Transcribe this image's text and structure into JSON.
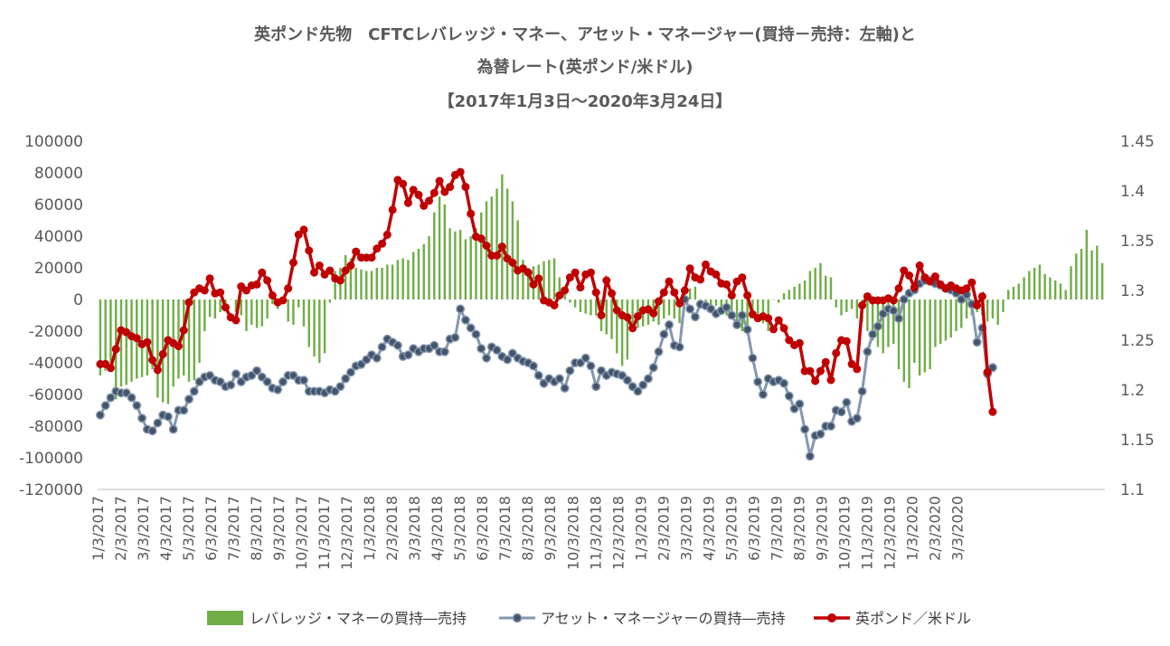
{
  "title_lines": [
    "英ポンド先物　CFTCレバレッジ・マネー、アセット・マネージャー(買持－売持：左軸)と",
    "為替レート(英ポンド/米ドル)",
    "【2017年1月3日～2020年3月24日】"
  ],
  "chart_data": {
    "type": "bar+line",
    "title": "英ポンド先物　CFTCレバレッジ・マネー、アセット・マネージャー(買持－売持：左軸)と 為替レート(英ポンド/米ドル) 【2017年1月3日～2020年3月24日】",
    "x_start": "1/3/2017",
    "x_end": "3/24/2020",
    "x_frequency": "weekly",
    "x_tick_labels": [
      "1/3/2017",
      "2/3/2017",
      "3/3/2017",
      "4/3/2017",
      "5/3/2017",
      "6/3/2017",
      "7/3/2017",
      "8/3/2017",
      "9/3/2017",
      "10/3/2017",
      "11/3/2017",
      "12/3/2017",
      "1/3/2018",
      "2/3/2018",
      "3/3/2018",
      "4/3/2018",
      "5/3/2018",
      "6/3/2018",
      "7/3/2018",
      "8/3/2018",
      "9/3/2018",
      "10/3/2018",
      "11/3/2018",
      "12/3/2018",
      "1/3/2019",
      "2/3/2019",
      "3/3/2019",
      "4/3/2019",
      "5/3/2019",
      "6/3/2019",
      "7/3/2019",
      "8/3/2019",
      "9/3/2019",
      "10/3/2019",
      "11/3/2019",
      "12/3/2019",
      "1/3/2020",
      "2/3/2020",
      "3/3/2020"
    ],
    "y_left_ticks": [
      "100000",
      "80000",
      "60000",
      "40000",
      "20000",
      "0",
      "-20000",
      "-40000",
      "-60000",
      "-80000",
      "-100000",
      "-120000"
    ],
    "y_left_range": [
      -120000,
      100000
    ],
    "y_right_ticks": [
      "1.45",
      "1.4",
      "1.35",
      "1.3",
      "1.25",
      "1.2",
      "1.15",
      "1.1"
    ],
    "y_right_range": [
      1.1,
      1.45
    ],
    "grid": false,
    "legend_position": "bottom",
    "colors": {
      "leveraged": "#70AD47",
      "asset": "#8497B0",
      "asset_marker": "#44546A",
      "gbp": "#C00000"
    },
    "series": [
      {
        "name": "レバレッジ・マネーの買持―売持",
        "type": "bar",
        "axis": "left",
        "values": [
          -48000,
          -45000,
          -40000,
          -63000,
          -55000,
          -54000,
          -52000,
          -50000,
          -49000,
          -48000,
          -44000,
          -62000,
          -65000,
          -66000,
          -55000,
          -50000,
          -48000,
          -52000,
          -51000,
          -40000,
          -20000,
          -11000,
          -12000,
          -8000,
          -6000,
          0,
          -8000,
          -10000,
          -20000,
          -16000,
          -18000,
          -17000,
          -12000,
          -3000,
          -6000,
          -2000,
          -14000,
          -16000,
          -5000,
          -17000,
          -30000,
          -36000,
          -40000,
          -34000,
          -2000,
          18000,
          20000,
          28000,
          26000,
          20000,
          19000,
          18000,
          18000,
          20000,
          20000,
          22000,
          22000,
          25000,
          26000,
          25000,
          30000,
          32000,
          35000,
          40000,
          55000,
          65000,
          60000,
          45000,
          43000,
          44000,
          38000,
          40000,
          45000,
          55000,
          62000,
          65000,
          70000,
          79000,
          70000,
          62000,
          50000,
          25000,
          20000,
          21000,
          22000,
          24000,
          25000,
          26000,
          14000,
          7000,
          -2000,
          -5000,
          -8000,
          -9000,
          -10000,
          -10000,
          -20000,
          -22000,
          -25000,
          -34000,
          -42000,
          -38000,
          -20000,
          -18000,
          -17000,
          -16000,
          -14000,
          -16000,
          -12000,
          -10000,
          -12000,
          -15000,
          4000,
          7000,
          8000,
          -2000,
          -4000,
          -5000,
          -4000,
          -6000,
          -10000,
          -12000,
          -15000,
          -20000,
          -18000,
          -10000,
          -12000,
          -15000,
          -20000,
          0,
          -2000,
          4000,
          6000,
          8000,
          10000,
          12000,
          18000,
          20000,
          23000,
          15000,
          14000,
          -5000,
          -10000,
          -8000,
          -6000,
          -12000,
          -14000,
          -20000,
          -26000,
          -30000,
          -34000,
          -30000,
          -28000,
          -44000,
          -52000,
          -56000,
          -40000,
          -48000,
          -46000,
          -44000,
          -30000,
          -28000,
          -26000,
          -24000,
          -20000,
          -18000,
          -12000,
          -10000,
          -8000,
          -10000,
          -14000,
          -12000,
          -16000,
          -8000,
          6000,
          8000,
          10000,
          14000,
          18000,
          20000,
          22000,
          16000,
          14000,
          12000,
          10000,
          6000,
          21000,
          29000,
          32000,
          44000,
          31000,
          34000,
          23000
        ]
      },
      {
        "name": "アセット・マネージャーの買持―売持",
        "type": "line",
        "axis": "left",
        "values": [
          -73000,
          -67000,
          -62000,
          -58000,
          -59000,
          -59000,
          -62000,
          -67000,
          -75000,
          -82000,
          -83000,
          -78000,
          -73000,
          -74000,
          -82000,
          -70000,
          -70000,
          -63000,
          -58000,
          -52000,
          -49000,
          -48000,
          -51000,
          -52000,
          -55000,
          -54000,
          -47000,
          -52000,
          -49000,
          -48000,
          -45000,
          -49000,
          -52000,
          -56000,
          -57000,
          -52000,
          -48000,
          -48000,
          -51000,
          -51000,
          -58000,
          -58000,
          -58000,
          -59000,
          -57000,
          -58000,
          -55000,
          -50000,
          -46000,
          -42000,
          -41000,
          -38000,
          -35000,
          -37000,
          -30000,
          -25000,
          -27000,
          -29000,
          -36000,
          -35000,
          -31000,
          -33000,
          -31000,
          -31000,
          -29000,
          -33000,
          -33000,
          -25000,
          -24000,
          -6000,
          -13000,
          -18000,
          -22000,
          -31000,
          -37000,
          -30000,
          -32000,
          -36000,
          -38000,
          -34000,
          -37000,
          -39000,
          -40000,
          -42000,
          -48000,
          -53000,
          -50000,
          -52000,
          -50000,
          -56000,
          -45000,
          -40000,
          -40000,
          -37000,
          -42000,
          -55000,
          -45000,
          -48000,
          -46000,
          -47000,
          -48000,
          -51000,
          -55000,
          -58000,
          -54000,
          -50000,
          -43000,
          -33000,
          -22000,
          -16000,
          -29000,
          -30000,
          0,
          -6000,
          -11000,
          -3000,
          -4000,
          -6000,
          -9000,
          -7000,
          -5000,
          -10000,
          -16000,
          -10000,
          -19000,
          -37000,
          -52000,
          -60000,
          -50000,
          -52000,
          -51000,
          -53000,
          -61000,
          -69000,
          -66000,
          -82000,
          -99000,
          -86000,
          -85000,
          -80000,
          -80000,
          -70000,
          -71000,
          -65000,
          -77000,
          -75000,
          -58000,
          -33000,
          -22000,
          -17000,
          -9000,
          -6000,
          -7000,
          -12000,
          0,
          4000,
          6000,
          10000,
          12000,
          12000,
          10000,
          9000,
          7000,
          6000,
          4000,
          0,
          3000,
          -3000,
          -27000,
          -18000,
          -47000,
          -43000
        ]
      },
      {
        "name": "英ポンド／米ドル",
        "type": "line",
        "axis": "right",
        "values": [
          1.226,
          1.226,
          1.222,
          1.241,
          1.26,
          1.258,
          1.254,
          1.252,
          1.246,
          1.248,
          1.23,
          1.22,
          1.236,
          1.25,
          1.247,
          1.244,
          1.26,
          1.288,
          1.298,
          1.302,
          1.3,
          1.312,
          1.297,
          1.298,
          1.283,
          1.273,
          1.27,
          1.304,
          1.3,
          1.305,
          1.306,
          1.318,
          1.31,
          1.295,
          1.288,
          1.29,
          1.302,
          1.328,
          1.356,
          1.361,
          1.34,
          1.318,
          1.325,
          1.316,
          1.32,
          1.312,
          1.31,
          1.32,
          1.325,
          1.339,
          1.333,
          1.333,
          1.333,
          1.342,
          1.347,
          1.356,
          1.381,
          1.411,
          1.407,
          1.388,
          1.401,
          1.396,
          1.385,
          1.39,
          1.398,
          1.41,
          1.399,
          1.404,
          1.416,
          1.419,
          1.404,
          1.377,
          1.354,
          1.352,
          1.345,
          1.335,
          1.335,
          1.344,
          1.332,
          1.328,
          1.32,
          1.322,
          1.318,
          1.306,
          1.312,
          1.29,
          1.288,
          1.285,
          1.295,
          1.3,
          1.313,
          1.318,
          1.303,
          1.316,
          1.318,
          1.298,
          1.275,
          1.31,
          1.297,
          1.28,
          1.275,
          1.273,
          1.262,
          1.274,
          1.28,
          1.281,
          1.277,
          1.289,
          1.298,
          1.309,
          1.298,
          1.287,
          1.3,
          1.322,
          1.313,
          1.311,
          1.326,
          1.319,
          1.316,
          1.307,
          1.306,
          1.295,
          1.309,
          1.313,
          1.295,
          1.276,
          1.272,
          1.274,
          1.272,
          1.261,
          1.27,
          1.262,
          1.25,
          1.245,
          1.247,
          1.219,
          1.219,
          1.209,
          1.219,
          1.228,
          1.21,
          1.237,
          1.25,
          1.249,
          1.226,
          1.221,
          1.285,
          1.294,
          1.29,
          1.29,
          1.29,
          1.292,
          1.29,
          1.302,
          1.32,
          1.315,
          1.303,
          1.325,
          1.313,
          1.309,
          1.314,
          1.306,
          1.302,
          1.305,
          1.302,
          1.3,
          1.302,
          1.308,
          1.285,
          1.294,
          1.218,
          1.178
        ]
      }
    ]
  }
}
